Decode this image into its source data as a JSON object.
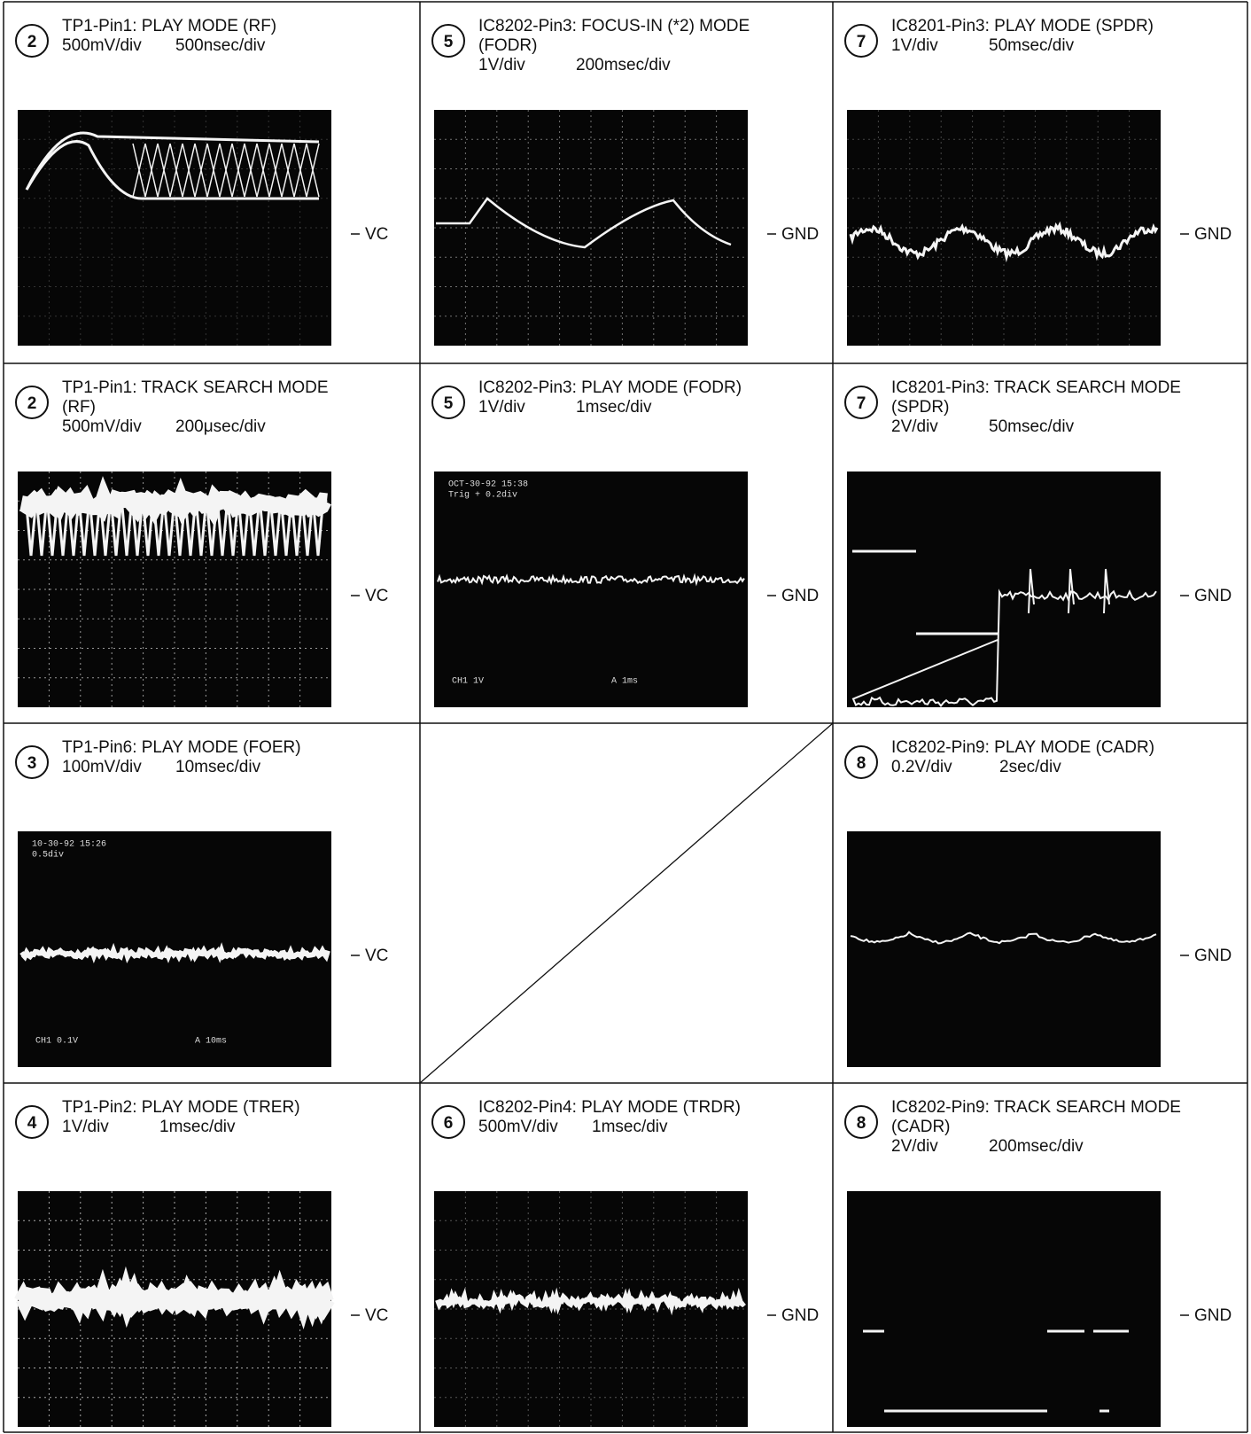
{
  "cells": [
    {
      "number": "2",
      "title": [
        "TP1-Pin1: PLAY MODE (RF)"
      ],
      "volts": "500mV/div",
      "time": "500nsec/div",
      "ref": "VC"
    },
    {
      "number": "5",
      "title": [
        "IC8202-Pin3: FOCUS-IN (*2) MODE",
        "(FODR)"
      ],
      "volts": "1V/div",
      "time": "200msec/div",
      "ref": "GND"
    },
    {
      "number": "7",
      "title": [
        "IC8201-Pin3: PLAY MODE (SPDR)"
      ],
      "volts": "1V/div",
      "time": "50msec/div",
      "ref": "GND"
    },
    {
      "number": "2",
      "title": [
        "TP1-Pin1: TRACK SEARCH MODE",
        "(RF)"
      ],
      "volts": "500mV/div",
      "time": "200μsec/div",
      "ref": "VC"
    },
    {
      "number": "5",
      "title": [
        "IC8202-Pin3: PLAY MODE (FODR)"
      ],
      "volts": "1V/div",
      "time": "1msec/div",
      "ref": "GND",
      "screen_top": [
        "OCT-30-92 15:38",
        "Trig + 0.2div"
      ],
      "screen_bottom": [
        "CH1 1V",
        "A 1ms"
      ]
    },
    {
      "number": "7",
      "title": [
        "IC8201-Pin3: TRACK SEARCH MODE",
        "(SPDR)"
      ],
      "volts": "2V/div",
      "time": "50msec/div",
      "ref": "GND"
    },
    {
      "number": "3",
      "title": [
        "TP1-Pin6: PLAY MODE (FOER)"
      ],
      "volts": "100mV/div",
      "time": "10msec/div",
      "ref": "VC",
      "screen_top": [
        "10-30-92 15:26",
        "0.5div"
      ],
      "screen_bottom": [
        "CH1 0.1V",
        "A 10ms"
      ]
    },
    null,
    {
      "number": "8",
      "title": [
        "IC8202-Pin9: PLAY MODE (CADR)"
      ],
      "volts": "0.2V/div",
      "time": "2sec/div",
      "ref": "GND"
    },
    {
      "number": "4",
      "title": [
        "TP1-Pin2: PLAY MODE (TRER)"
      ],
      "volts": "1V/div",
      "time": "1msec/div",
      "ref": "VC"
    },
    {
      "number": "6",
      "title": [
        "IC8202-Pin4: PLAY MODE (TRDR)"
      ],
      "volts": "500mV/div",
      "time": "1msec/div",
      "ref": "GND"
    },
    {
      "number": "8",
      "title": [
        "IC8202-Pin9: TRACK SEARCH MODE",
        "(CADR)"
      ],
      "volts": "2V/div",
      "time": "200msec/div",
      "ref": "GND"
    }
  ]
}
